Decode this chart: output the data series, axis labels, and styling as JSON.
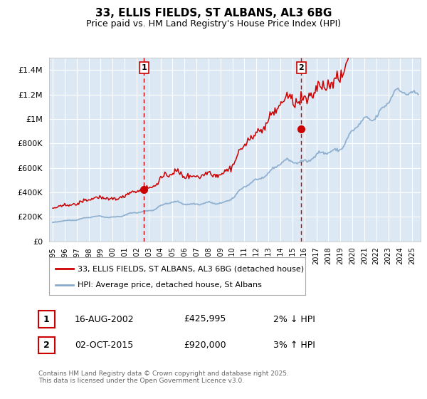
{
  "title": "33, ELLIS FIELDS, ST ALBANS, AL3 6BG",
  "subtitle": "Price paid vs. HM Land Registry's House Price Index (HPI)",
  "footnote": "Contains HM Land Registry data © Crown copyright and database right 2025.\nThis data is licensed under the Open Government Licence v3.0.",
  "legend_line1": "33, ELLIS FIELDS, ST ALBANS, AL3 6BG (detached house)",
  "legend_line2": "HPI: Average price, detached house, St Albans",
  "sale1_label": "1",
  "sale1_date": "16-AUG-2002",
  "sale1_price": "£425,995",
  "sale1_hpi": "2% ↓ HPI",
  "sale2_label": "2",
  "sale2_date": "02-OCT-2015",
  "sale2_price": "£920,000",
  "sale2_hpi": "3% ↑ HPI",
  "xlim": [
    1994.7,
    2025.7
  ],
  "ylim": [
    0,
    1500000
  ],
  "yticks": [
    0,
    200000,
    400000,
    600000,
    800000,
    1000000,
    1200000,
    1400000
  ],
  "ytick_labels": [
    "£0",
    "£200K",
    "£400K",
    "£600K",
    "£800K",
    "£1M",
    "£1.2M",
    "£1.4M"
  ],
  "background_color": "#ffffff",
  "plot_bg_color": "#dce9f5",
  "grid_color": "#ffffff",
  "line1_color": "#cc0000",
  "line2_color": "#88aacc",
  "vline_color": "#cc0000",
  "marker_color": "#cc0000",
  "sale1_x": 2002.625,
  "sale2_x": 2015.75,
  "sale1_y": 425995,
  "sale2_y": 920000,
  "seed": 42
}
